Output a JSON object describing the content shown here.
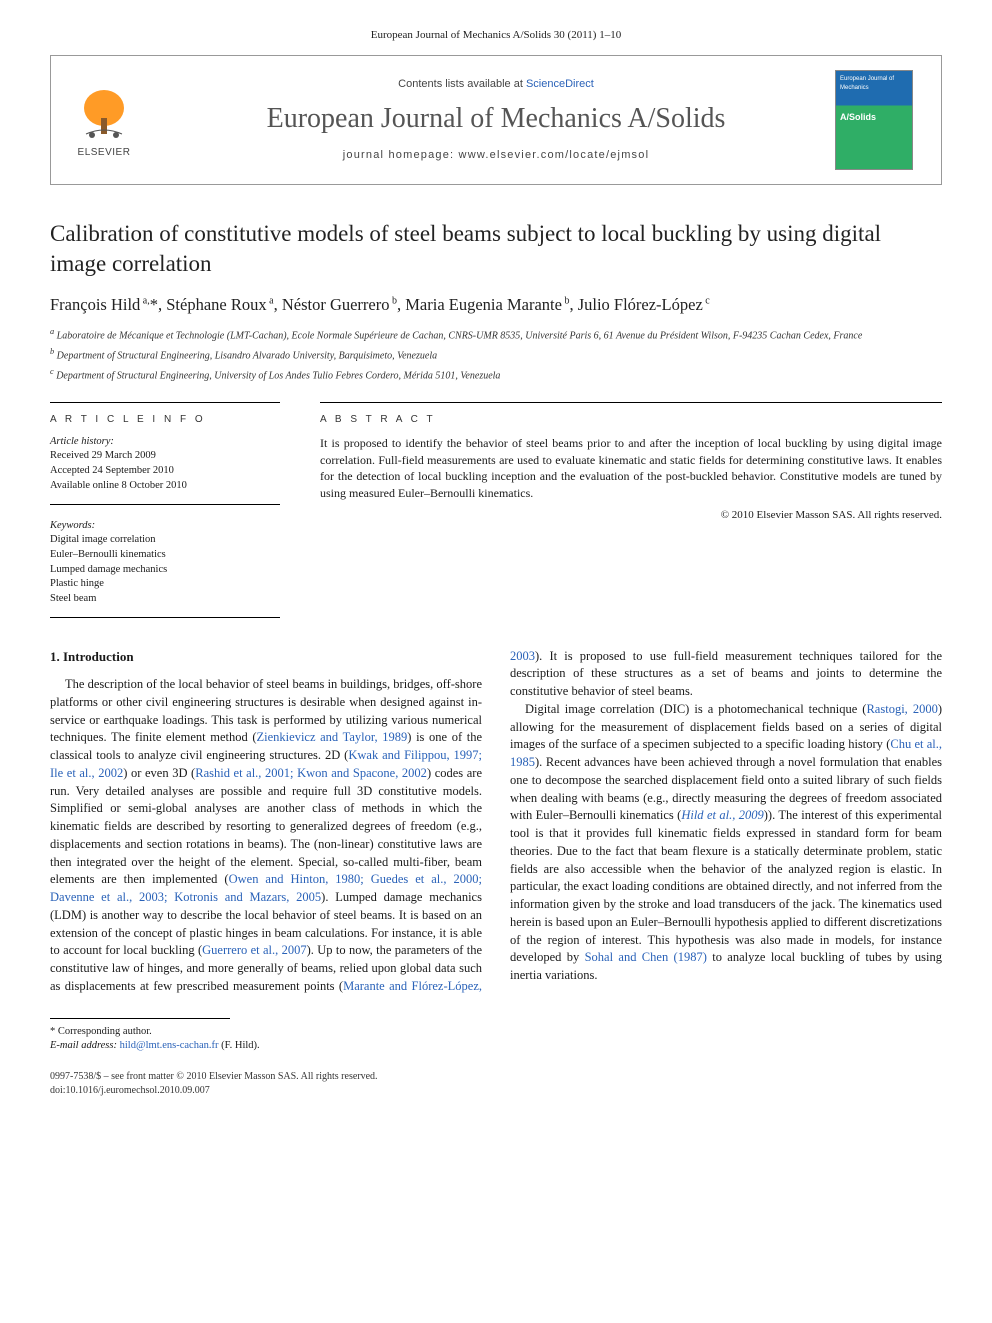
{
  "journal_ref": "European Journal of Mechanics A/Solids 30 (2011) 1–10",
  "header": {
    "contents_prefix": "Contents lists available at ",
    "contents_link": "ScienceDirect",
    "journal_name": "European Journal of Mechanics A/Solids",
    "homepage_prefix": "journal homepage: ",
    "homepage_url": "www.elsevier.com/locate/ejmsol",
    "publisher": "ELSEVIER",
    "cover_top": "European Journal of Mechanics",
    "cover_mid": "A/Solids"
  },
  "title": "Calibration of constitutive models of steel beams subject to local buckling by using digital image correlation",
  "authors_html": "François Hild<sup> a,</sup>*, Stéphane Roux<sup> a</sup>, Néstor Guerrero<sup> b</sup>, Maria Eugenia Marante<sup> b</sup>, Julio Flórez-López<sup> c</sup>",
  "affiliations": [
    "a Laboratoire de Mécanique et Technologie (LMT-Cachan), Ecole Normale Supérieure de Cachan, CNRS-UMR 8535, Université Paris 6, 61 Avenue du Président Wilson, F-94235 Cachan Cedex, France",
    "b Department of Structural Engineering, Lisandro Alvarado University, Barquisimeto, Venezuela",
    "c Department of Structural Engineering, University of Los Andes Tulio Febres Cordero, Mérida 5101, Venezuela"
  ],
  "article_info_heading": "A R T I C L E   I N F O",
  "abstract_heading": "A B S T R A C T",
  "history": {
    "label": "Article history:",
    "items": [
      "Received 29 March 2009",
      "Accepted 24 September 2010",
      "Available online 8 October 2010"
    ]
  },
  "keywords": {
    "label": "Keywords:",
    "items": [
      "Digital image correlation",
      "Euler–Bernoulli kinematics",
      "Lumped damage mechanics",
      "Plastic hinge",
      "Steel beam"
    ]
  },
  "abstract": "It is proposed to identify the behavior of steel beams prior to and after the inception of local buckling by using digital image correlation. Full-field measurements are used to evaluate kinematic and static fields for determining constitutive laws. It enables for the detection of local buckling inception and the evaluation of the post-buckled behavior. Constitutive models are tuned by using measured Euler–Bernoulli kinematics.",
  "copyright": "© 2010 Elsevier Masson SAS. All rights reserved.",
  "section_heading": "1. Introduction",
  "body": {
    "p1a": "The description of the local behavior of steel beams in buildings, bridges, off-shore platforms or other civil engineering structures is desirable when designed against in-service or earthquake loadings. This task is performed by utilizing various numerical techniques. The finite element method (",
    "r1": "Zienkievicz and Taylor, 1989",
    "p1b": ") is one of the classical tools to analyze civil engineering structures. 2D (",
    "r2": "Kwak and Filippou, 1997; Ile et al., 2002",
    "p1c": ") or even 3D (",
    "r3": "Rashid et al., 2001; Kwon and Spacone, 2002",
    "p1d": ") codes are run. Very detailed analyses are possible and require full 3D constitutive models. Simplified or semi-global analyses are another class of methods in which the kinematic fields are described by resorting to generalized degrees of freedom (e.g., displacements and section rotations in beams). The (non-linear) constitutive laws are then integrated over the height of the element. Special, so-called multi-fiber, beam elements are then implemented (",
    "r4": "Owen and Hinton, 1980; Guedes et al., 2000; Davenne et al., 2003; Kotronis and Mazars, 2005",
    "p1e": "). Lumped damage mechanics (LDM) is another way to describe the local behavior of steel beams. It is based on an extension of the concept of plastic hinges in beam calculations. For instance, it is able to account for local buckling (",
    "r5": "Guerrero et al., 2007",
    "p1f": "). Up to now, the ",
    "p2a": "parameters of the constitutive law of hinges, and more generally of beams, relied upon global data such as displacements at few prescribed measurement points (",
    "r6": "Marante and Flórez-López, 2003",
    "p2b": "). It is proposed to use full-field measurement techniques tailored for the description of these structures as a set of beams and joints to determine the constitutive behavior of steel beams.",
    "p3a": "Digital image correlation (DIC) is a photomechanical technique (",
    "r7": "Rastogi, 2000",
    "p3b": ") allowing for the measurement of displacement fields based on a series of digital images of the surface of a specimen subjected to a specific loading history (",
    "r8": "Chu et al., 1985",
    "p3c": "). Recent advances have been achieved through a novel formulation that enables one to decompose the searched displacement field onto a suited library of such fields when dealing with beams (e.g., directly measuring the degrees of freedom associated with Euler–Bernoulli kinematics (",
    "r9": "Hild et al., 2009",
    "p3d": ")). The interest of this experimental tool is that it provides full kinematic fields expressed in standard form for beam theories. Due to the fact that beam flexure is a statically determinate problem, static fields are also accessible when the behavior of the analyzed region is elastic. In particular, the exact loading conditions are obtained directly, and not inferred from the information given by the stroke and load transducers of the jack. The kinematics used herein is based upon an Euler–Bernoulli hypothesis applied to different discretizations of the region of interest. This hypothesis was also made in models, for instance developed by ",
    "r10": "Sohal and Chen (1987)",
    "p3e": " to analyze local buckling of tubes by using inertia variations."
  },
  "footnote": {
    "corr": "* Corresponding author.",
    "email_label": "E-mail address: ",
    "email": "hild@lmt.ens-cachan.fr",
    "email_who": " (F. Hild)."
  },
  "doi": {
    "line1": "0997-7538/$ – see front matter © 2010 Elsevier Masson SAS. All rights reserved.",
    "line2": "doi:10.1016/j.euromechsol.2010.09.007"
  },
  "colors": {
    "link": "#2a62b8",
    "text": "#1a1a1a",
    "cover_blue": "#1f6cb0",
    "cover_green": "#2fae66",
    "elsevier_orange": "#ff8a00"
  }
}
